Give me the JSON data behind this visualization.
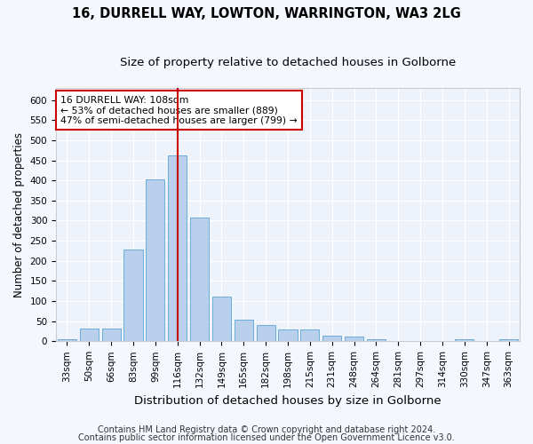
{
  "title1": "16, DURRELL WAY, LOWTON, WARRINGTON, WA3 2LG",
  "title2": "Size of property relative to detached houses in Golborne",
  "xlabel": "Distribution of detached houses by size in Golborne",
  "ylabel": "Number of detached properties",
  "categories": [
    "33sqm",
    "50sqm",
    "66sqm",
    "83sqm",
    "99sqm",
    "116sqm",
    "132sqm",
    "149sqm",
    "165sqm",
    "182sqm",
    "198sqm",
    "215sqm",
    "231sqm",
    "248sqm",
    "264sqm",
    "281sqm",
    "297sqm",
    "314sqm",
    "330sqm",
    "347sqm",
    "363sqm"
  ],
  "values": [
    5,
    32,
    32,
    228,
    402,
    463,
    308,
    112,
    54,
    40,
    30,
    30,
    14,
    11,
    5,
    0,
    0,
    0,
    5,
    0,
    5
  ],
  "bar_color": "#b8d0eb",
  "bar_edge_color": "#6aaed6",
  "vline_x": 5,
  "vline_color": "#cc0000",
  "ylim": [
    0,
    630
  ],
  "yticks": [
    0,
    50,
    100,
    150,
    200,
    250,
    300,
    350,
    400,
    450,
    500,
    550,
    600
  ],
  "annotation_line1": "16 DURRELL WAY: 108sqm",
  "annotation_line2": "← 53% of detached houses are smaller (889)",
  "annotation_line3": "47% of semi-detached houses are larger (799) →",
  "annotation_box_color": "#ffffff",
  "annotation_box_edge": "#cc0000",
  "footer1": "Contains HM Land Registry data © Crown copyright and database right 2024.",
  "footer2": "Contains public sector information licensed under the Open Government Licence v3.0.",
  "bg_color": "#edf2fb",
  "grid_color": "#ffffff",
  "fig_bg_color": "#f5f7ff",
  "title1_fontsize": 10.5,
  "title2_fontsize": 9.5,
  "xlabel_fontsize": 9.5,
  "ylabel_fontsize": 8.5,
  "tick_fontsize": 7.5,
  "annot_fontsize": 7.8,
  "footer_fontsize": 7.0
}
